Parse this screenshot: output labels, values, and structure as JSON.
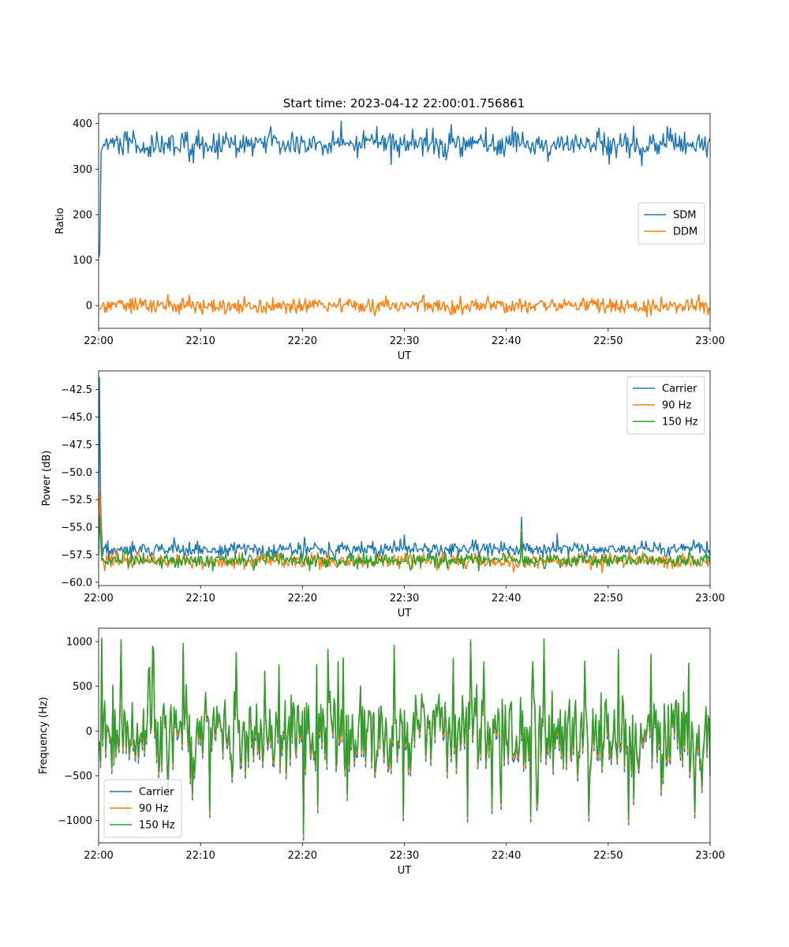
{
  "figure_title": "Start time: 2023-04-12 22:00:01.756861",
  "chart_data": [
    {
      "type": "line",
      "xlabel": "UT",
      "ylabel": "Ratio",
      "x_ticks": [
        "22:00",
        "22:10",
        "22:20",
        "22:30",
        "22:40",
        "22:50",
        "23:00"
      ],
      "xlim": [
        0,
        60
      ],
      "ylim": [
        -50,
        422
      ],
      "y_ticks": [
        0,
        100,
        200,
        300,
        400
      ],
      "y_tick_labels": [
        "0",
        "100",
        "200",
        "300",
        "400"
      ],
      "legend_position": "center-right",
      "series": [
        {
          "name": "SDM",
          "color": "#1f77b4",
          "mean": 355,
          "noise": 15,
          "start": [
            [
              0,
              105
            ],
            [
              0.1,
              115
            ],
            [
              0.25,
              340
            ],
            [
              0.5,
              355
            ]
          ]
        },
        {
          "name": "DDM",
          "color": "#ff7f0e",
          "mean": 0,
          "noise": 9,
          "start": []
        }
      ]
    },
    {
      "type": "line",
      "xlabel": "UT",
      "ylabel": "Power (dB)",
      "x_ticks": [
        "22:00",
        "22:10",
        "22:20",
        "22:30",
        "22:40",
        "22:50",
        "23:00"
      ],
      "xlim": [
        0,
        60
      ],
      "ylim": [
        -60.3,
        -40.8
      ],
      "y_ticks": [
        -60,
        -57.5,
        -55,
        -52.5,
        -50,
        -47.5,
        -45,
        -42.5
      ],
      "y_tick_labels": [
        "−60.0",
        "−57.5",
        "−55.0",
        "−52.5",
        "−50.0",
        "−47.5",
        "−45.0",
        "−42.5"
      ],
      "legend_position": "top-right",
      "series": [
        {
          "name": "Carrier",
          "color": "#1f77b4",
          "mean": -57.0,
          "noise": 0.35,
          "start": [
            [
              0,
              -53.5
            ],
            [
              0.07,
              -41.4
            ],
            [
              0.2,
              -53.0
            ],
            [
              0.35,
              -57.0
            ]
          ],
          "spikes": [
            [
              30.0,
              -55.7
            ],
            [
              41.5,
              -54.1
            ],
            [
              45.0,
              -55.6
            ]
          ]
        },
        {
          "name": "90 Hz",
          "color": "#ff7f0e",
          "mean": -58.1,
          "noise": 0.35,
          "start": [
            [
              0,
              -57.0
            ],
            [
              0.1,
              -51.8
            ],
            [
              0.3,
              -57.9
            ]
          ],
          "spikes": [
            [
              41.5,
              -55.2
            ]
          ]
        },
        {
          "name": "150 Hz",
          "color": "#2ca02c",
          "mean": -58.0,
          "noise": 0.35,
          "start": [
            [
              0,
              -57.5
            ],
            [
              0.1,
              -54.0
            ],
            [
              0.3,
              -58.0
            ]
          ],
          "spikes": [
            [
              41.5,
              -55.4
            ]
          ]
        }
      ]
    },
    {
      "type": "line",
      "xlabel": "UT",
      "ylabel": "Frequency (Hz)",
      "x_ticks": [
        "22:00",
        "22:10",
        "22:20",
        "22:30",
        "22:40",
        "22:50",
        "23:00"
      ],
      "xlim": [
        0,
        60
      ],
      "ylim": [
        -1250,
        1150
      ],
      "y_ticks": [
        -1000,
        -500,
        0,
        500,
        1000
      ],
      "y_tick_labels": [
        "−1000",
        "−500",
        "0",
        "500",
        "1000"
      ],
      "legend_position": "bottom-left",
      "series": [
        {
          "name": "Carrier",
          "color": "#1f77b4",
          "offset": -70
        },
        {
          "name": "90 Hz",
          "color": "#ff7f0e",
          "offset": -35
        },
        {
          "name": "150 Hz",
          "color": "#2ca02c",
          "offset": 0
        }
      ],
      "amplitude": 420,
      "extremes": [
        [
          0.3,
          1040
        ],
        [
          2.2,
          1020
        ],
        [
          5.4,
          900
        ],
        [
          8.3,
          980
        ],
        [
          13.5,
          880
        ],
        [
          20.1,
          -1150
        ],
        [
          24.0,
          820
        ],
        [
          29.0,
          960
        ],
        [
          36.5,
          1020
        ],
        [
          43.7,
          1030
        ],
        [
          47.7,
          780
        ],
        [
          52.0,
          -980
        ],
        [
          54.2,
          860
        ],
        [
          55.2,
          -650
        ],
        [
          57.9,
          760
        ],
        [
          59.2,
          -620
        ]
      ]
    }
  ]
}
